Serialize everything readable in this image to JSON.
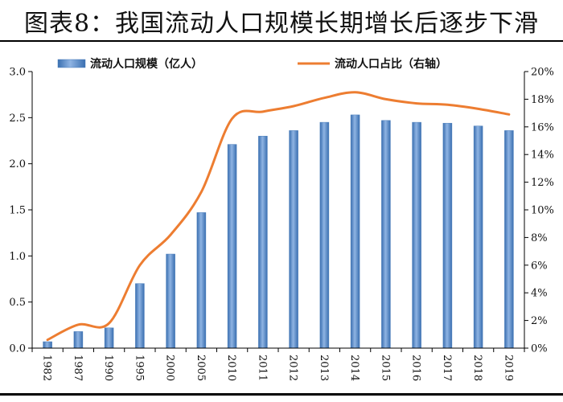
{
  "title": "图表8：我国流动人口规模长期增长后逐步下滑",
  "colors": {
    "bar": "#4a7ebb",
    "bar_light": "#8fb4e3",
    "line": "#ed7d31",
    "axis": "#000000"
  },
  "chart_data": {
    "type": "bar",
    "categories": [
      "1982",
      "1987",
      "1990",
      "1995",
      "2000",
      "2005",
      "2010",
      "2011",
      "2012",
      "2013",
      "2014",
      "2015",
      "2016",
      "2017",
      "2018",
      "2019"
    ],
    "series": [
      {
        "name": "流动人口规模（亿人）",
        "type": "bar",
        "axis": "left",
        "values": [
          0.07,
          0.18,
          0.22,
          0.7,
          1.02,
          1.47,
          2.21,
          2.3,
          2.36,
          2.45,
          2.53,
          2.47,
          2.45,
          2.44,
          2.41,
          2.36
        ]
      },
      {
        "name": "流动人口占比（右轴）",
        "type": "line",
        "axis": "right",
        "values": [
          0.6,
          1.7,
          1.8,
          6.0,
          8.2,
          11.3,
          16.6,
          17.1,
          17.5,
          18.1,
          18.5,
          18.0,
          17.7,
          17.6,
          17.3,
          16.9
        ]
      }
    ],
    "y_left": {
      "ticks": [
        "0.0",
        "0.5",
        "1.0",
        "1.5",
        "2.0",
        "2.5",
        "3.0"
      ],
      "ylim": [
        0,
        3
      ]
    },
    "y_right": {
      "ticks": [
        "0%",
        "2%",
        "4%",
        "6%",
        "8%",
        "10%",
        "12%",
        "14%",
        "16%",
        "18%",
        "20%"
      ],
      "ylim": [
        0,
        20
      ]
    },
    "legend_placement": "top"
  }
}
